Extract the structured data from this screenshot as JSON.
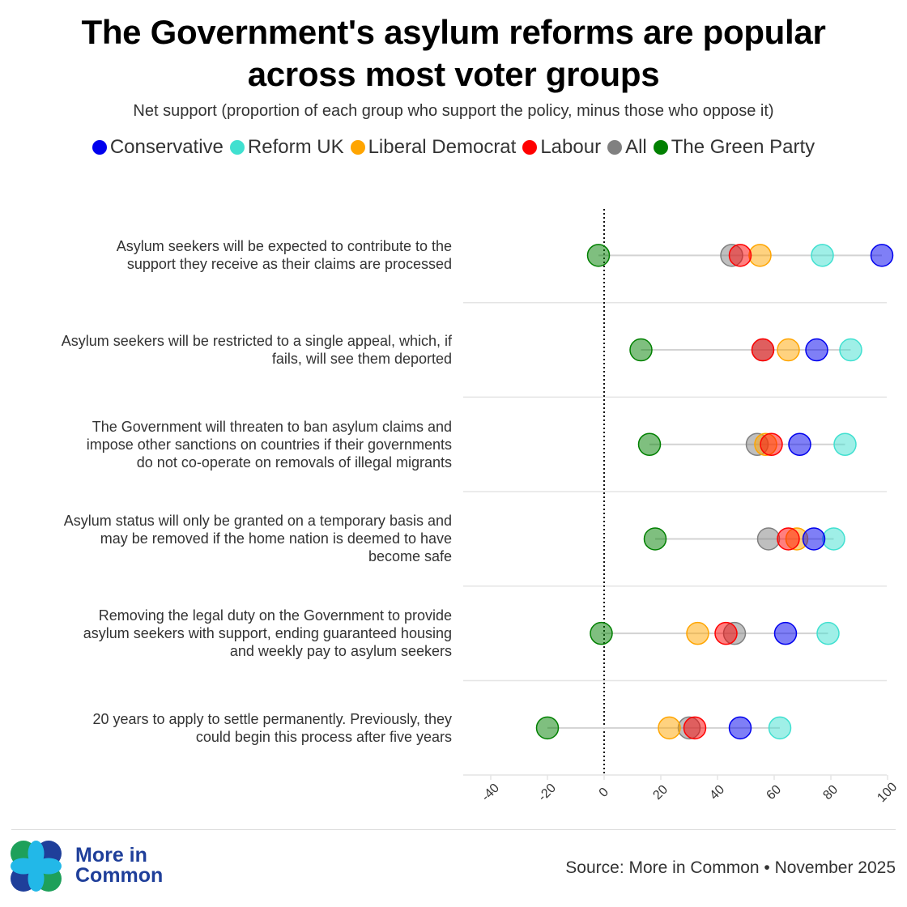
{
  "header": {
    "title_line1": "The Government's asylum reforms are popular",
    "title_line2": "across most voter groups",
    "subtitle": "Net support (proportion of each group who support the policy, minus those who oppose it)"
  },
  "legend": [
    {
      "label": "Conservative",
      "color": "#0000ee"
    },
    {
      "label": "Reform UK",
      "color": "#40e0d0"
    },
    {
      "label": "Liberal Democrat",
      "color": "#ffa500"
    },
    {
      "label": "Labour",
      "color": "#ff0000"
    },
    {
      "label": "All",
      "color": "#808080"
    },
    {
      "label": "The Green Party",
      "color": "#008000"
    }
  ],
  "chart_data": {
    "type": "scatter",
    "subtype": "dot-plot",
    "title": "The Government's asylum reforms are popular across most voter groups",
    "subtitle": "Net support (proportion of each group who support the policy, minus those who oppose it)",
    "xlabel": "",
    "ylabel": "",
    "xlim": [
      -50,
      100
    ],
    "xticks": [
      -40,
      -20,
      0,
      20,
      40,
      60,
      80,
      100
    ],
    "xtick_labels": [
      "-40",
      "-20",
      "0",
      "20",
      "40",
      "60",
      "80",
      "100"
    ],
    "reference_line": 0,
    "legend_position": "top-center",
    "categories": [
      [
        "Asylum seekers will be expected to contribute to the",
        "support they receive as their claims are processed"
      ],
      [
        "Asylum seekers will be restricted to a single appeal, which, if",
        "fails, will see them deported"
      ],
      [
        "The Government will threaten to ban asylum claims and",
        "impose other sanctions on countries if their governments",
        "do not co-operate on removals of illegal migrants"
      ],
      [
        "Asylum status will only be granted on a temporary basis and",
        "may be removed if the home nation is deemed to have",
        "become safe"
      ],
      [
        "Removing the legal duty on the Government to provide",
        "asylum seekers with support, ending guaranteed housing",
        "and weekly pay to asylum seekers"
      ],
      [
        "20 years to apply to settle permanently. Previously, they",
        "could begin this process after five years"
      ]
    ],
    "series": [
      {
        "name": "The Green Party",
        "color": "#008000",
        "values": [
          -2,
          13,
          16,
          18,
          -1,
          -20
        ]
      },
      {
        "name": "All",
        "color": "#808080",
        "values": [
          45,
          56,
          54,
          58,
          46,
          30
        ]
      },
      {
        "name": "Liberal Democrat",
        "color": "#ffa500",
        "values": [
          55,
          65,
          57,
          68,
          33,
          23
        ]
      },
      {
        "name": "Labour",
        "color": "#ff0000",
        "values": [
          48,
          56,
          59,
          65,
          43,
          32
        ]
      },
      {
        "name": "Reform UK",
        "color": "#40e0d0",
        "values": [
          77,
          87,
          85,
          81,
          79,
          62
        ]
      },
      {
        "name": "Conservative",
        "color": "#0000ee",
        "values": [
          98,
          75,
          69,
          74,
          64,
          48
        ]
      }
    ]
  },
  "footer": {
    "logo_line1": "More in",
    "logo_line2": "Common",
    "source": "Source: More in Common • November 2025"
  },
  "colors": {
    "logo_blue": "#1f3f9a",
    "logo_light": "#22b8e8",
    "logo_green": "#1ea05a"
  }
}
